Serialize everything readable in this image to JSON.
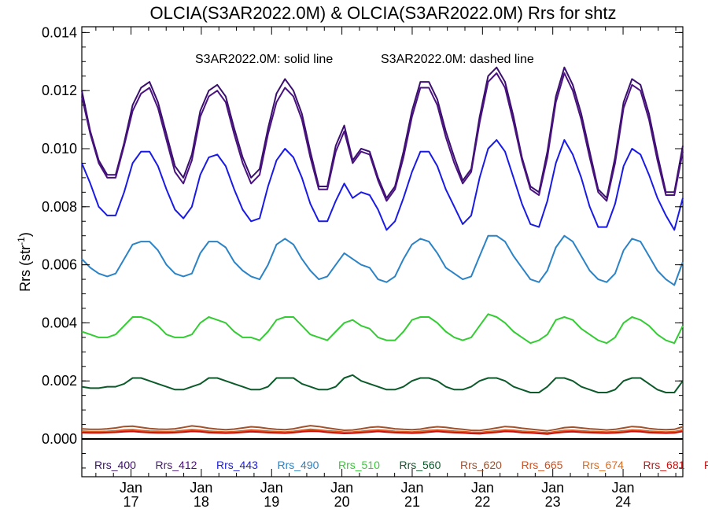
{
  "chart_data": {
    "type": "line",
    "title": "OLCIA(S3AR2022.0M) & OLCIA(S3AR2022.0M)  Rrs for shtz",
    "annotation_left": "S3AR2022.0M: solid line",
    "annotation_right": "S3AR2022.0M: dashed line",
    "ylabel": "Rrs (str",
    "ylabel_exp": "-1",
    "ylabel_close": ")",
    "ylim": [
      -0.0013,
      0.0142
    ],
    "yticks": [
      "0.014",
      "0.012",
      "0.010",
      "0.008",
      "0.006",
      "0.004",
      "0.002",
      "0.000"
    ],
    "ytick_values": [
      0.014,
      0.012,
      0.01,
      0.008,
      0.006,
      0.004,
      0.002,
      0.0
    ],
    "xlim": [
      16.3,
      24.85
    ],
    "xticks": [
      {
        "month": "Jan",
        "day": "17"
      },
      {
        "month": "Jan",
        "day": "18"
      },
      {
        "month": "Jan",
        "day": "19"
      },
      {
        "month": "Jan",
        "day": "20"
      },
      {
        "month": "Jan",
        "day": "21"
      },
      {
        "month": "Jan",
        "day": "22"
      },
      {
        "month": "Jan",
        "day": "23"
      },
      {
        "month": "Jan",
        "day": "24"
      }
    ],
    "xtick_values": [
      17,
      18,
      19,
      20,
      21,
      22,
      23,
      24
    ],
    "grid": false,
    "legend_position": "bottom",
    "series": [
      {
        "name": "Rrs_400",
        "color": "#3a0f6e",
        "line": "solid",
        "values": [
          0.012,
          0.0106,
          0.0096,
          0.0091,
          0.0091,
          0.0102,
          0.0115,
          0.0121,
          0.0123,
          0.0116,
          0.0105,
          0.0094,
          0.009,
          0.0098,
          0.0113,
          0.012,
          0.0122,
          0.0118,
          0.0107,
          0.0097,
          0.009,
          0.0093,
          0.0107,
          0.0119,
          0.0124,
          0.012,
          0.0112,
          0.0099,
          0.0087,
          0.0087,
          0.0101,
          0.0108,
          0.0096,
          0.01,
          0.0099,
          0.009,
          0.0083,
          0.0087,
          0.0099,
          0.0113,
          0.0123,
          0.0123,
          0.0117,
          0.0106,
          0.0097,
          0.0089,
          0.0093,
          0.0111,
          0.0125,
          0.0128,
          0.0123,
          0.0111,
          0.0097,
          0.0087,
          0.0085,
          0.0099,
          0.0118,
          0.0128,
          0.0122,
          0.0112,
          0.0099,
          0.0086,
          0.0083,
          0.0097,
          0.0116,
          0.0124,
          0.0122,
          0.0112,
          0.0098,
          0.0085,
          0.0085,
          0.0101
        ]
      },
      {
        "name": "Rrs_412",
        "color": "#4a1280",
        "line": "dashed",
        "values": [
          0.0118,
          0.0105,
          0.0095,
          0.009,
          0.009,
          0.0101,
          0.0113,
          0.0119,
          0.0121,
          0.0114,
          0.0103,
          0.0092,
          0.0088,
          0.0096,
          0.0111,
          0.0118,
          0.012,
          0.0116,
          0.0105,
          0.0095,
          0.0088,
          0.0091,
          0.0105,
          0.0116,
          0.0121,
          0.0118,
          0.011,
          0.0097,
          0.0086,
          0.0086,
          0.0099,
          0.0106,
          0.0095,
          0.0099,
          0.0098,
          0.0089,
          0.0082,
          0.0086,
          0.0097,
          0.0111,
          0.0121,
          0.0121,
          0.0115,
          0.0104,
          0.0095,
          0.0088,
          0.0092,
          0.0109,
          0.0123,
          0.0126,
          0.0121,
          0.0109,
          0.0096,
          0.0086,
          0.0084,
          0.0097,
          0.0116,
          0.0126,
          0.012,
          0.011,
          0.0097,
          0.0085,
          0.0082,
          0.0095,
          0.0114,
          0.0122,
          0.012,
          0.011,
          0.0096,
          0.0084,
          0.0084,
          0.0099
        ]
      },
      {
        "name": "Rrs_443",
        "color": "#1a1ae6",
        "line": "solid",
        "values": [
          0.0095,
          0.0088,
          0.008,
          0.0077,
          0.0077,
          0.0085,
          0.0095,
          0.0099,
          0.0099,
          0.0094,
          0.0086,
          0.0079,
          0.0076,
          0.008,
          0.0091,
          0.0097,
          0.0098,
          0.0094,
          0.0086,
          0.0079,
          0.0075,
          0.0076,
          0.0087,
          0.0096,
          0.01,
          0.0097,
          0.009,
          0.0081,
          0.0075,
          0.0075,
          0.0082,
          0.0088,
          0.0083,
          0.0085,
          0.0084,
          0.0079,
          0.0072,
          0.0075,
          0.0083,
          0.0092,
          0.0099,
          0.0099,
          0.0094,
          0.0086,
          0.008,
          0.0074,
          0.0077,
          0.009,
          0.01,
          0.0103,
          0.0099,
          0.009,
          0.0081,
          0.0074,
          0.0073,
          0.0082,
          0.0095,
          0.0103,
          0.0098,
          0.009,
          0.008,
          0.0073,
          0.0073,
          0.0081,
          0.0094,
          0.01,
          0.0098,
          0.0091,
          0.0083,
          0.0077,
          0.0072,
          0.0083
        ]
      },
      {
        "name": "Rrs_490",
        "color": "#2b83c6",
        "line": "solid",
        "values": [
          0.0062,
          0.0059,
          0.0057,
          0.0056,
          0.0057,
          0.0062,
          0.0067,
          0.0068,
          0.0068,
          0.0065,
          0.006,
          0.0057,
          0.0056,
          0.0057,
          0.0064,
          0.0068,
          0.0068,
          0.0066,
          0.0061,
          0.0058,
          0.0056,
          0.0055,
          0.006,
          0.0067,
          0.0069,
          0.0067,
          0.0062,
          0.0058,
          0.0055,
          0.0056,
          0.006,
          0.0064,
          0.0062,
          0.006,
          0.0059,
          0.0055,
          0.0054,
          0.0056,
          0.0062,
          0.0067,
          0.0069,
          0.0068,
          0.0064,
          0.0059,
          0.0057,
          0.0055,
          0.0056,
          0.0063,
          0.007,
          0.007,
          0.0068,
          0.0063,
          0.0059,
          0.0055,
          0.0054,
          0.0058,
          0.0066,
          0.007,
          0.0068,
          0.0063,
          0.0058,
          0.0055,
          0.0054,
          0.0057,
          0.0065,
          0.0069,
          0.0068,
          0.0063,
          0.0058,
          0.0055,
          0.0053,
          0.0061
        ]
      },
      {
        "name": "Rrs_510",
        "color": "#33cc33",
        "line": "solid",
        "values": [
          0.0037,
          0.0036,
          0.0035,
          0.0035,
          0.0036,
          0.0039,
          0.0042,
          0.0042,
          0.0041,
          0.0039,
          0.0036,
          0.0035,
          0.0035,
          0.0036,
          0.004,
          0.0042,
          0.0041,
          0.004,
          0.0037,
          0.0035,
          0.0035,
          0.0034,
          0.0037,
          0.0041,
          0.0042,
          0.0042,
          0.0039,
          0.0036,
          0.0035,
          0.0034,
          0.0037,
          0.004,
          0.0041,
          0.0039,
          0.0038,
          0.0035,
          0.0034,
          0.0034,
          0.0037,
          0.0041,
          0.0042,
          0.0042,
          0.004,
          0.0037,
          0.0035,
          0.0034,
          0.0035,
          0.0039,
          0.0043,
          0.0042,
          0.004,
          0.0037,
          0.0035,
          0.0033,
          0.0034,
          0.0036,
          0.0041,
          0.0042,
          0.0041,
          0.0038,
          0.0036,
          0.0034,
          0.0033,
          0.0035,
          0.004,
          0.0042,
          0.0041,
          0.0039,
          0.0036,
          0.0034,
          0.0033,
          0.0039
        ]
      },
      {
        "name": "Rrs_560",
        "color": "#0b5a2a",
        "line": "solid",
        "values": [
          0.0018,
          0.00175,
          0.00175,
          0.0018,
          0.0018,
          0.0019,
          0.0021,
          0.0021,
          0.002,
          0.0019,
          0.0018,
          0.0017,
          0.0017,
          0.0018,
          0.0019,
          0.0021,
          0.0021,
          0.002,
          0.0019,
          0.0018,
          0.0017,
          0.0017,
          0.0018,
          0.0021,
          0.0021,
          0.0021,
          0.0019,
          0.0018,
          0.0017,
          0.0017,
          0.0018,
          0.0021,
          0.0022,
          0.002,
          0.0019,
          0.0018,
          0.0017,
          0.0017,
          0.0018,
          0.002,
          0.0021,
          0.0021,
          0.002,
          0.0018,
          0.0017,
          0.0017,
          0.0018,
          0.002,
          0.0021,
          0.0021,
          0.002,
          0.0018,
          0.0017,
          0.0016,
          0.0016,
          0.0018,
          0.0021,
          0.0021,
          0.002,
          0.0018,
          0.0017,
          0.0016,
          0.0016,
          0.0017,
          0.002,
          0.0021,
          0.0021,
          0.0019,
          0.0017,
          0.0016,
          0.0016,
          0.002
        ]
      },
      {
        "name": "Rrs_620",
        "color": "#a0522d",
        "line": "solid",
        "values": [
          0.00035,
          0.00033,
          0.00033,
          0.00035,
          0.00038,
          0.00043,
          0.00044,
          0.0004,
          0.00036,
          0.00034,
          0.00033,
          0.00035,
          0.0004,
          0.00045,
          0.00042,
          0.00037,
          0.00034,
          0.00032,
          0.00034,
          0.00038,
          0.00042,
          0.0004,
          0.00036,
          0.00033,
          0.00032,
          0.00035,
          0.00041,
          0.00046,
          0.00043,
          0.00038,
          0.00034,
          0.0003,
          0.00031,
          0.00035,
          0.0004,
          0.00042,
          0.00039,
          0.00035,
          0.00033,
          0.00032,
          0.00034,
          0.00039,
          0.00042,
          0.0004,
          0.00036,
          0.00033,
          0.0003,
          0.00029,
          0.00033,
          0.00038,
          0.00043,
          0.00041,
          0.00037,
          0.00034,
          0.00031,
          0.00028,
          0.00033,
          0.00039,
          0.00041,
          0.00038,
          0.00035,
          0.00033,
          0.00031,
          0.00033,
          0.00038,
          0.00043,
          0.00041,
          0.00036,
          0.00033,
          0.00032,
          0.00033,
          0.00042
        ]
      },
      {
        "name": "Rrs_665",
        "color": "#d2501e",
        "line": "solid",
        "values": [
          0.00027,
          0.00025,
          0.00025,
          0.00026,
          0.00028,
          0.00031,
          0.00032,
          0.00029,
          0.00027,
          0.00026,
          0.00025,
          0.00026,
          0.00029,
          0.00032,
          0.0003,
          0.00027,
          0.00025,
          0.00024,
          0.00025,
          0.00028,
          0.00031,
          0.00029,
          0.00027,
          0.00025,
          0.00024,
          0.00026,
          0.0003,
          0.00033,
          0.00031,
          0.00028,
          0.00026,
          0.00023,
          0.00024,
          0.00026,
          0.00029,
          0.00031,
          0.00029,
          0.00026,
          0.00025,
          0.00024,
          0.00026,
          0.00029,
          0.00031,
          0.00029,
          0.00027,
          0.00025,
          0.00023,
          0.00022,
          0.00025,
          0.00028,
          0.00031,
          0.0003,
          0.00027,
          0.00025,
          0.00023,
          0.00021,
          0.00025,
          0.00029,
          0.0003,
          0.00028,
          0.00026,
          0.00025,
          0.00024,
          0.00025,
          0.00028,
          0.00031,
          0.0003,
          0.00027,
          0.00025,
          0.00024,
          0.00025,
          0.00031
        ]
      },
      {
        "name": "Rrs_674",
        "color": "#e06b1c",
        "line": "solid",
        "values": [
          0.00024,
          0.00023,
          0.00023,
          0.00024,
          0.00025,
          0.00027,
          0.00028,
          0.00026,
          0.00024,
          0.00023,
          0.00023,
          0.00024,
          0.00026,
          0.00028,
          0.00027,
          0.00024,
          0.00023,
          0.00022,
          0.00023,
          0.00025,
          0.00027,
          0.00026,
          0.00024,
          0.00023,
          0.00022,
          0.00024,
          0.00027,
          0.00029,
          0.00028,
          0.00025,
          0.00023,
          0.00021,
          0.00022,
          0.00024,
          0.00026,
          0.00028,
          0.00026,
          0.00024,
          0.00023,
          0.00022,
          0.00023,
          0.00026,
          0.00028,
          0.00026,
          0.00024,
          0.00023,
          0.00021,
          0.0002,
          0.00023,
          0.00025,
          0.00028,
          0.00027,
          0.00024,
          0.00023,
          0.00021,
          0.00019,
          0.00023,
          0.00026,
          0.00027,
          0.00025,
          0.00024,
          0.00023,
          0.00022,
          0.00023,
          0.00025,
          0.00028,
          0.00027,
          0.00024,
          0.00023,
          0.00022,
          0.00023,
          0.00028
        ]
      },
      {
        "name": "Rrs_681",
        "color": "#cc1111",
        "line": "solid",
        "values": [
          0.00022,
          0.00021,
          0.00021,
          0.00022,
          0.00023,
          0.00025,
          0.00026,
          0.00024,
          0.00022,
          0.00021,
          0.00021,
          0.00022,
          0.00024,
          0.00026,
          0.00025,
          0.00022,
          0.00021,
          0.0002,
          0.00021,
          0.00023,
          0.00025,
          0.00024,
          0.00022,
          0.00021,
          0.0002,
          0.00022,
          0.00025,
          0.00027,
          0.00026,
          0.00023,
          0.00021,
          0.00019,
          0.0002,
          0.00022,
          0.00024,
          0.00026,
          0.00024,
          0.00022,
          0.00021,
          0.0002,
          0.00021,
          0.00024,
          0.00026,
          0.00024,
          0.00022,
          0.00021,
          0.00019,
          0.00018,
          0.00021,
          0.00023,
          0.00026,
          0.00025,
          0.00022,
          0.00021,
          0.00019,
          0.00017,
          0.00021,
          0.00024,
          0.00025,
          0.00023,
          0.00022,
          0.00021,
          0.0002,
          0.00021,
          0.00023,
          0.00026,
          0.00025,
          0.00022,
          0.00021,
          0.0002,
          0.00021,
          0.00026
        ]
      },
      {
        "name": "Rr",
        "color": "#cc0000",
        "line": "solid",
        "values": []
      }
    ],
    "zero_line_color": "#000000"
  }
}
